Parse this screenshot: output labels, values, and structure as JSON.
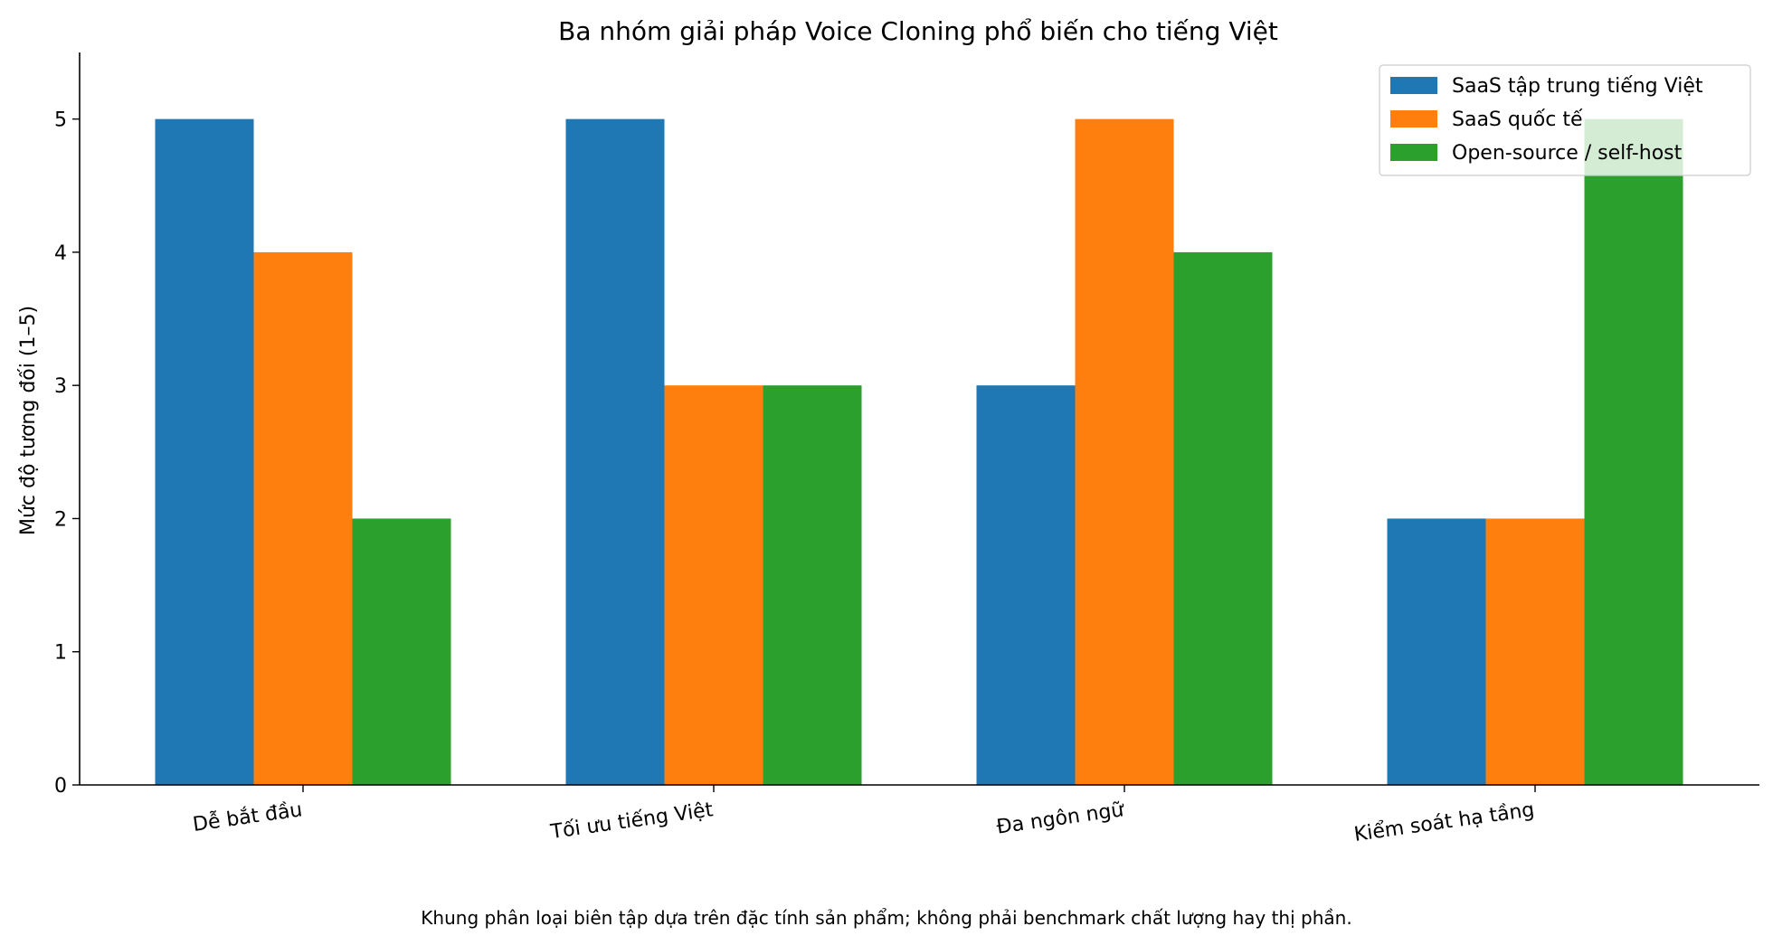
{
  "chart_data": {
    "type": "bar",
    "title": "Ba nhóm giải pháp Voice Cloning phổ biến cho tiếng Việt",
    "xlabel": "",
    "ylabel": "Mức độ tương đối (1–5)",
    "categories": [
      "Dễ bắt đầu",
      "Tối ưu tiếng Việt",
      "Đa ngôn ngữ",
      "Kiểm soát hạ tầng"
    ],
    "series": [
      {
        "name": "SaaS tập trung tiếng Việt",
        "values": [
          5,
          5,
          3,
          2
        ],
        "color": "#1f77b4"
      },
      {
        "name": "SaaS quốc tế",
        "values": [
          4,
          3,
          5,
          2
        ],
        "color": "#ff7f0e"
      },
      {
        "name": "Open-source / self-host",
        "values": [
          2,
          3,
          4,
          5
        ],
        "color": "#2ca02c"
      }
    ],
    "ylim": [
      0,
      5.5
    ],
    "yticks": [
      "0",
      "1",
      "2",
      "3",
      "4",
      "5"
    ],
    "legend_position": "top-right",
    "grid": false,
    "caption": "Khung phân loại biên tập dựa trên đặc tính sản phẩm; không phải benchmark chất lượng hay thị phần."
  }
}
